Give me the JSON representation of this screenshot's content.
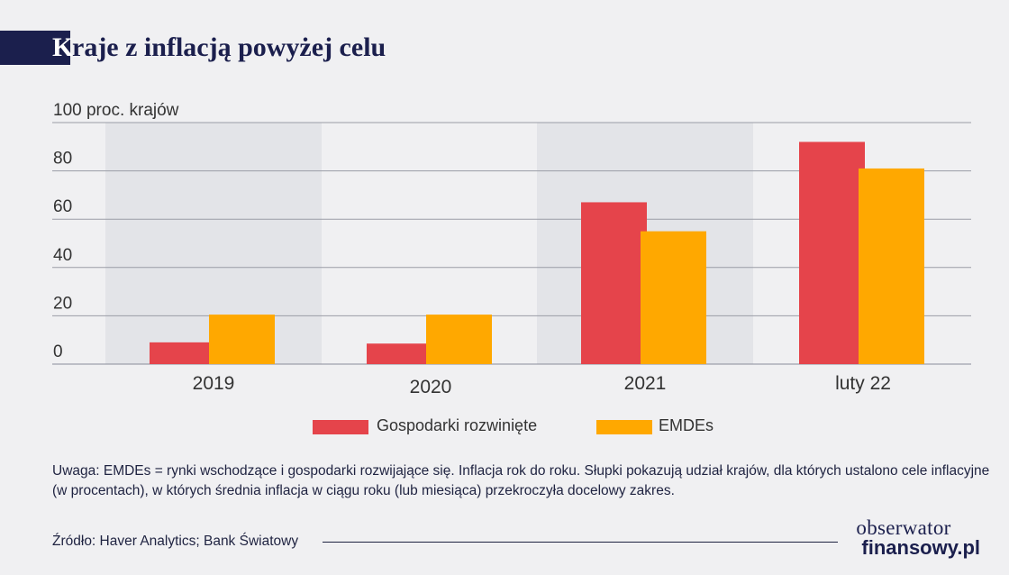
{
  "title": {
    "first_letter": "K",
    "rest": "raje z inflacją powyżej celu"
  },
  "chart_data": {
    "type": "bar",
    "title": "Kraje z inflacją powyżej celu",
    "ylabel": "100 proc. krajów",
    "ylim": [
      0,
      100
    ],
    "yticks": [
      "0",
      "20",
      "40",
      "60",
      "80"
    ],
    "grid": true,
    "legend_position": "bottom-center",
    "categories": [
      "2019",
      "2020",
      "2021",
      "luty 22"
    ],
    "series": [
      {
        "name": "Gospodarki rozwinięte",
        "color": "#e5444b",
        "values": [
          9,
          8.5,
          67,
          92
        ]
      },
      {
        "name": "EMDEs",
        "color": "#ffa800",
        "values": [
          20.5,
          20.5,
          55,
          81
        ]
      }
    ],
    "shaded_categories": [
      "2019",
      "2021"
    ]
  },
  "note": "Uwaga: EMDEs = rynki wschodzące i gospodarki rozwijające się. Inflacja rok do roku. Słupki pokazują udział krajów, dla których ustalono cele inflacyjne (w procentach), w których średnia inflacja w ciągu roku (lub miesiąca) przekroczyła docelowy zakres.",
  "source": "Źródło: Haver Analytics; Bank Światowy",
  "logo": {
    "top": "obserwator",
    "bottom": "finansowy.pl"
  },
  "colors": {
    "navy": "#1b1f4d",
    "red": "#e5444b",
    "orange": "#ffa800",
    "shade": "#e3e4e8"
  }
}
